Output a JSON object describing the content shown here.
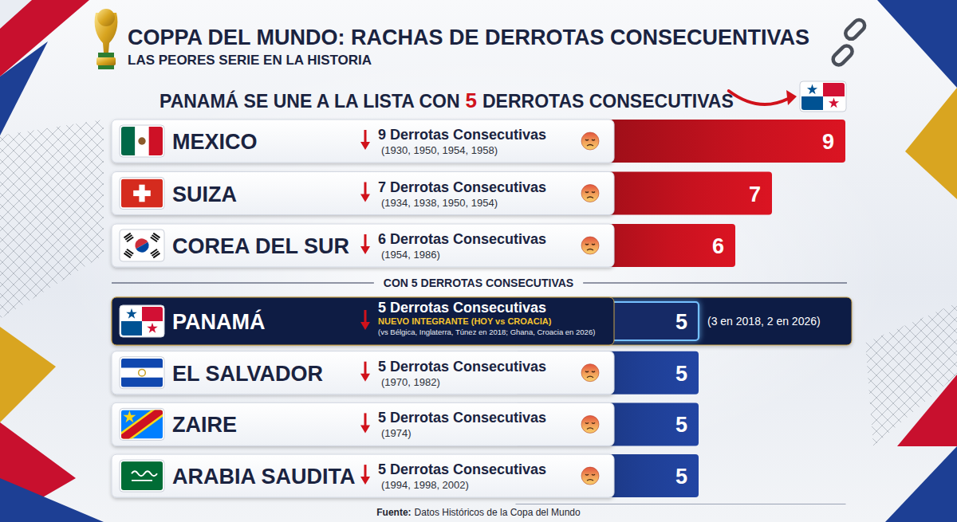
{
  "chart_data": {
    "type": "bar",
    "orientation": "horizontal",
    "title": "COPPA DEL MUNDO: RACHAS DE DERROTAS CONSECUENTIVAS",
    "subtitle": "LAS PEORES SERIE EN LA HISTORIA",
    "headline": {
      "prefix": "PANAMÁ SE UNE A LA LISTA CON",
      "number": 5,
      "suffix": "DERROTAS CONSECUTIVAS"
    },
    "categories": [
      "MEXICO",
      "SUIZA",
      "COREA DEL SUR",
      "PANAMÁ",
      "EL SALVADOR",
      "ZAIRE",
      "ARABIA SAUDITA"
    ],
    "values": [
      9,
      7,
      6,
      5,
      5,
      5,
      5
    ],
    "colors": [
      "#c8121f",
      "#c8121f",
      "#c8121f",
      "#132a66",
      "#1f3f95",
      "#1f3f95",
      "#1f3f95"
    ],
    "streak_labels": [
      "9 Derrotas Consecutivas",
      "7 Derrotas Consecutivas",
      "6 Derrotas Consecutivas",
      "5 Derrotas Consecutivas",
      "5 Derrotas Consecutivas",
      "5 Derrotas Consecutivas",
      "5 Derrotas Consecutivas"
    ],
    "years": [
      "(1930, 1950, 1954, 1958)",
      "(1934, 1938, 1950, 1954)",
      "(1954, 1986)",
      "(vs Bélgica, Inglaterra, Túnez en 2018; Ghana, Croacia en 2026)",
      "(1970, 1982)",
      "(1974)",
      "(1994, 1998, 2002)"
    ],
    "notes": [
      null,
      null,
      null,
      "NUEVO INTEGRANTE (HOY vs CROACIA)",
      null,
      null,
      null
    ],
    "side_notes": [
      null,
      null,
      null,
      "(3 en 2018, 2 en 2026)",
      null,
      null,
      null
    ],
    "separator": {
      "label": "CON 5 DERROTAS CONSECUTIVAS",
      "value": 5
    },
    "source": {
      "label": "Fuente:",
      "text": "Datos Históricos de la Copa del Mundo"
    },
    "xlim": [
      0,
      9
    ],
    "tick_labels": false,
    "data_labels": true
  }
}
